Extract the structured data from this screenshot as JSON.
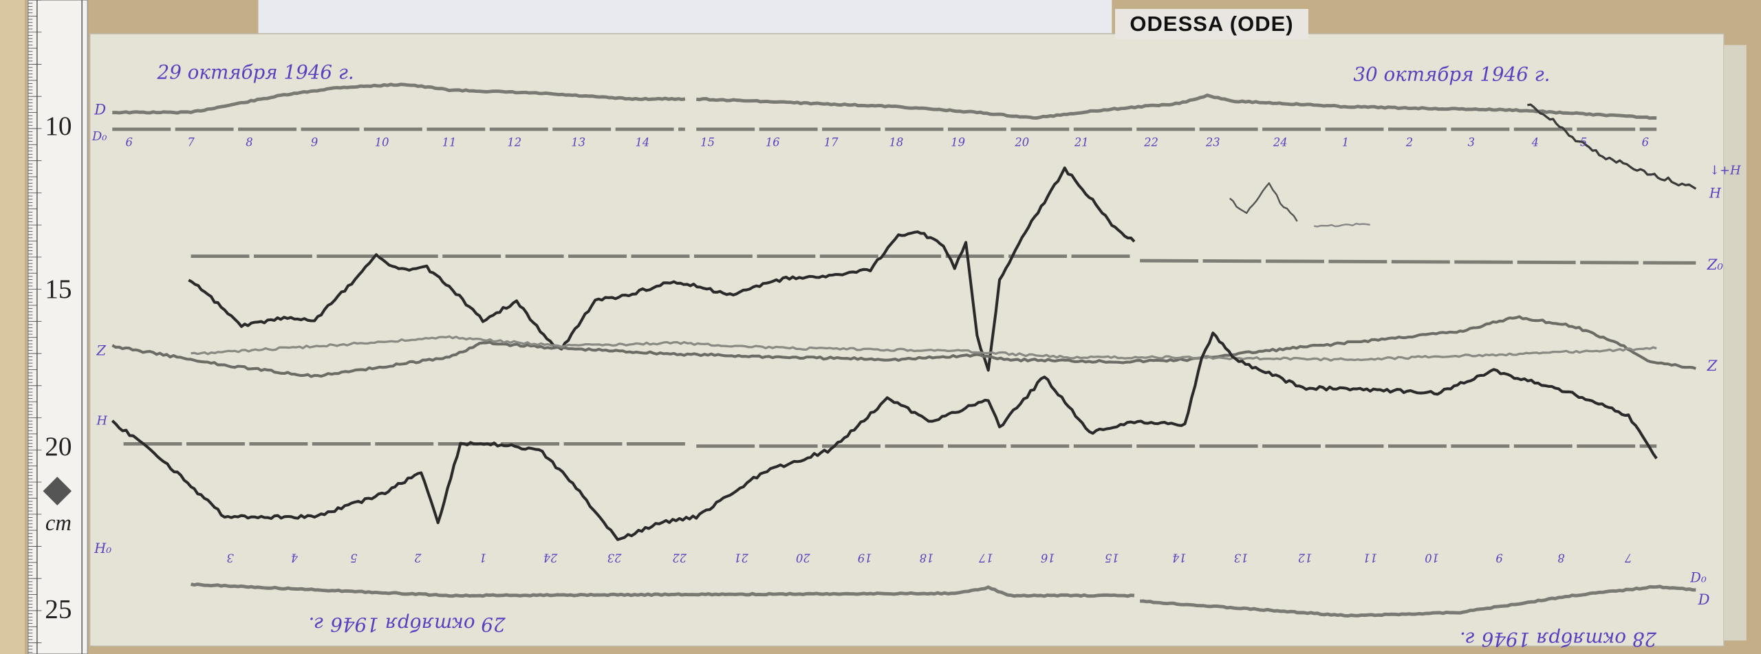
{
  "station_label": "ODESSA (ODE)",
  "ruler": {
    "marks": [
      "10",
      "15",
      "20",
      "25"
    ],
    "unit": "cm"
  },
  "dates": {
    "top_left": "29 октября 1946 г.",
    "top_right": "30 октября 1946 г.",
    "bottom_left": "29 октября 1946 г.",
    "bottom_right": "28 октября 1946 г."
  },
  "trace_labels": {
    "d": "D",
    "d0": "D₀",
    "h_right": "H",
    "h_arrow": "↓+H",
    "z_base_right": "Z₀",
    "z_left": "Z",
    "z_right": "Z",
    "h_left": "H",
    "h0": "H₀",
    "d_bottom": "D",
    "d0_bottom": "D₀"
  },
  "hours_top": [
    "6",
    "7",
    "8",
    "9",
    "10",
    "11",
    "12",
    "13",
    "14",
    "15",
    "16",
    "17",
    "18",
    "19",
    "20",
    "21",
    "22",
    "23",
    "24",
    "1",
    "2",
    "3",
    "4",
    "5",
    "6"
  ],
  "hours_bottom": [
    "3",
    "4",
    "5",
    "2",
    "1",
    "24",
    "23",
    "22",
    "21",
    "20",
    "19",
    "18",
    "17",
    "16",
    "15",
    "14",
    "13",
    "12",
    "11",
    "10",
    "9",
    "8",
    "7"
  ],
  "colors": {
    "paper": "#e5e3d5",
    "ink_trace": "#2a2a2a",
    "ink_gray": "#7a7a74",
    "handwriting": "#5a3fc0",
    "background": "#c4ae88"
  }
}
